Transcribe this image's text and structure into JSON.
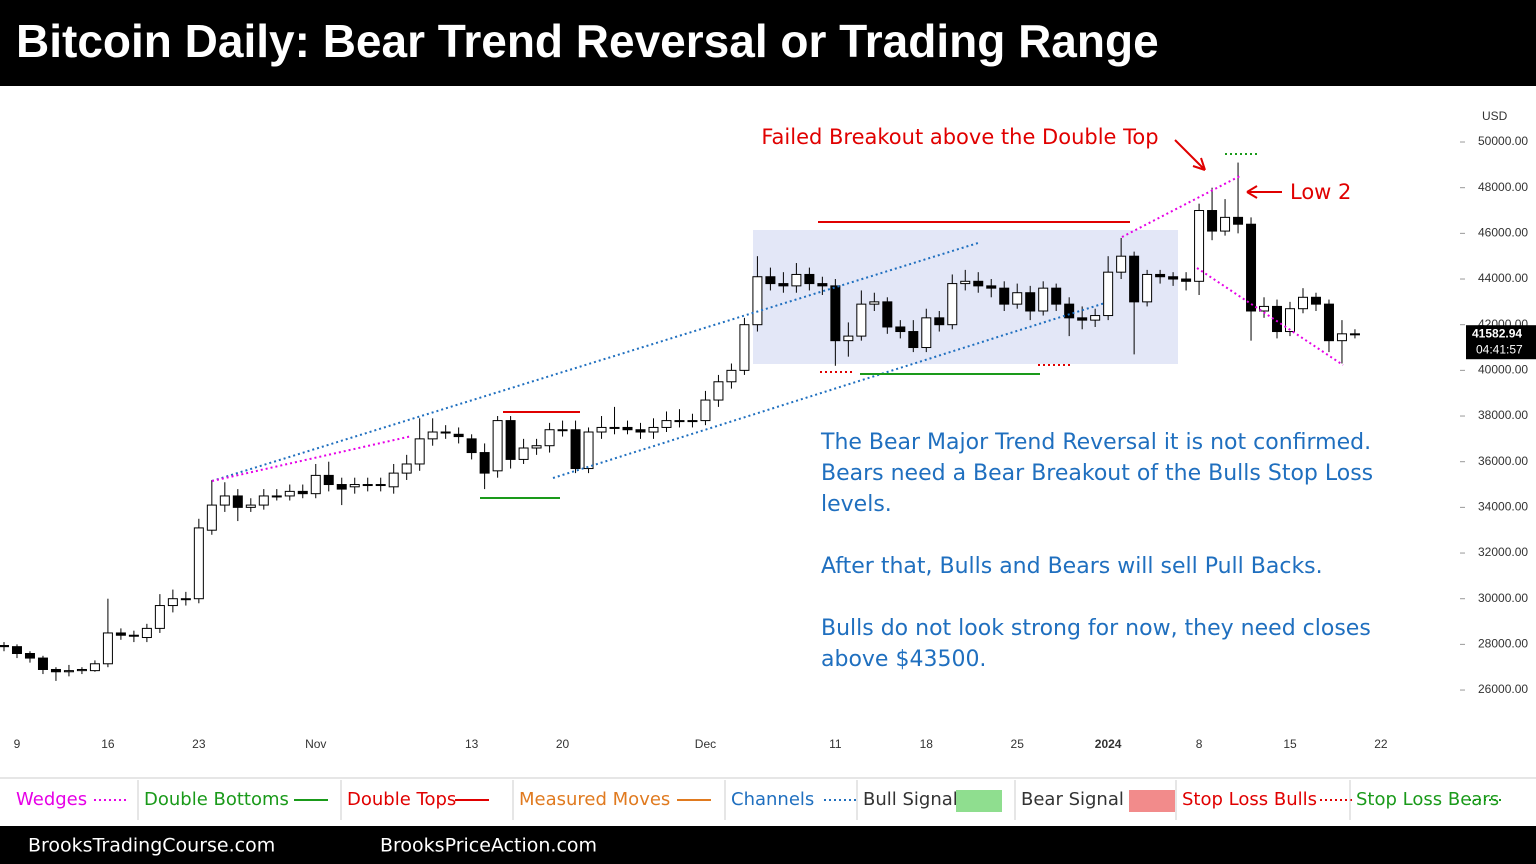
{
  "chart_data": {
    "type": "candlestick",
    "title": "Bitcoin Daily: Bear Trend Reversal or Trading Range",
    "currency": "USD",
    "categories": [
      null,
      "9",
      null,
      null,
      null,
      null,
      null,
      null,
      "16",
      null,
      null,
      null,
      null,
      null,
      null,
      "23",
      null,
      null,
      null,
      null,
      null,
      null,
      null,
      null,
      "Nov",
      null,
      null,
      null,
      null,
      null,
      null,
      null,
      null,
      null,
      null,
      null,
      "13",
      null,
      null,
      null,
      null,
      null,
      null,
      "20",
      null,
      null,
      null,
      null,
      null,
      null,
      null,
      null,
      null,
      null,
      "Dec",
      null,
      null,
      null,
      null,
      null,
      null,
      null,
      null,
      null,
      "11",
      null,
      null,
      null,
      null,
      null,
      null,
      "18",
      null,
      null,
      null,
      null,
      null,
      null,
      "25",
      null,
      null,
      null,
      null,
      null,
      null,
      "2024",
      null,
      null,
      null,
      null,
      null,
      null,
      "8",
      null,
      null,
      null,
      null,
      null,
      null,
      "15",
      null,
      null,
      null,
      null,
      null,
      null,
      "22",
      null,
      null
    ],
    "open": [
      27950,
      27900,
      27600,
      27400,
      26900,
      26800,
      26850,
      26850,
      27150,
      28500,
      28400,
      28300,
      28700,
      29700,
      30000,
      30000,
      33000,
      34100,
      34500,
      34000,
      34100,
      34500,
      34500,
      34700,
      34600,
      35400,
      35000,
      34900,
      35000,
      35000,
      34900,
      35500,
      35900,
      37000,
      37300,
      37200,
      37000,
      36400,
      35600,
      37800,
      36100,
      36600,
      36700,
      37400,
      37400,
      35700,
      37300,
      37500,
      37500,
      37400,
      37300,
      37500,
      37800,
      37800,
      37800,
      38700,
      39500,
      40000,
      42000,
      44100,
      43800,
      43700,
      44200,
      43800,
      43700,
      41300,
      41500,
      42900,
      43000,
      41900,
      41700,
      41000,
      42300,
      42000,
      43800,
      43900,
      43700,
      43600,
      42900,
      43400,
      42600,
      43600,
      42900,
      42300,
      42200,
      42400,
      44300,
      45000,
      43000,
      44200,
      44100,
      44000,
      43900,
      47000,
      46100,
      46700,
      46400,
      42600,
      42800,
      41700,
      42700,
      43200,
      42900,
      41300,
      41600,
      null,
      null,
      null,
      null
    ],
    "high": [
      28100,
      28000,
      27700,
      27500,
      27000,
      27100,
      27000,
      27300,
      30000,
      28700,
      28600,
      28900,
      30200,
      30400,
      30300,
      33500,
      35200,
      35100,
      34800,
      34400,
      34800,
      34800,
      35000,
      35000,
      35900,
      36000,
      35300,
      35300,
      35300,
      35300,
      35900,
      36300,
      37900,
      37900,
      37600,
      37500,
      37200,
      36800,
      38000,
      38000,
      37000,
      37000,
      37700,
      37800,
      37800,
      37500,
      38000,
      38400,
      37800,
      37700,
      37900,
      38200,
      38300,
      38100,
      39100,
      39800,
      40300,
      42300,
      45000,
      44500,
      44300,
      44700,
      44500,
      44100,
      44000,
      42100,
      43500,
      43400,
      43200,
      42200,
      42200,
      42700,
      42600,
      44200,
      44400,
      44300,
      44000,
      43900,
      43800,
      43700,
      43900,
      43800,
      43200,
      42800,
      42700,
      45000,
      45800,
      45200,
      44400,
      44400,
      44300,
      44300,
      47300,
      48000,
      47500,
      49100,
      46700,
      43200,
      43100,
      43000,
      43600,
      43400,
      43100,
      42200,
      41800,
      null,
      null,
      null,
      null
    ],
    "low": [
      27700,
      27400,
      27200,
      26700,
      26400,
      26600,
      26700,
      26800,
      27000,
      28200,
      28100,
      28100,
      28500,
      29400,
      29700,
      29800,
      32800,
      33800,
      33400,
      33800,
      33900,
      34300,
      34300,
      34400,
      34400,
      34700,
      34100,
      34600,
      34700,
      34700,
      34600,
      35200,
      35600,
      36700,
      37000,
      36800,
      36100,
      34800,
      35300,
      35700,
      35900,
      36300,
      36400,
      37100,
      35500,
      35500,
      37000,
      37200,
      37200,
      37000,
      37000,
      37300,
      37500,
      37500,
      37600,
      38400,
      39200,
      39800,
      41700,
      43500,
      43400,
      43400,
      43500,
      43300,
      40200,
      40600,
      41300,
      42600,
      41600,
      41400,
      40800,
      40800,
      41700,
      41800,
      43500,
      43400,
      43200,
      42600,
      42700,
      42200,
      42400,
      42600,
      41500,
      41800,
      41900,
      42200,
      44000,
      40700,
      42800,
      43800,
      43700,
      43500,
      43300,
      45700,
      45900,
      46000,
      41300,
      42300,
      41400,
      41500,
      42500,
      42600,
      40800,
      40300,
      41400,
      null,
      null,
      null,
      null
    ],
    "close": [
      27900,
      27600,
      27400,
      26900,
      26800,
      26850,
      26900,
      27150,
      28500,
      28400,
      28400,
      28700,
      29700,
      30000,
      30000,
      33100,
      34100,
      34500,
      34000,
      34100,
      34500,
      34500,
      34700,
      34600,
      35400,
      35000,
      34800,
      35000,
      35000,
      35000,
      35500,
      35900,
      37000,
      37300,
      37300,
      37100,
      36400,
      35500,
      37800,
      36100,
      36600,
      36700,
      37400,
      37400,
      35700,
      37300,
      37500,
      37500,
      37400,
      37300,
      37500,
      37800,
      37800,
      37800,
      38700,
      39500,
      40000,
      42000,
      44100,
      43800,
      43700,
      44200,
      43800,
      43700,
      41300,
      41500,
      42900,
      43000,
      41900,
      41700,
      41000,
      42300,
      42000,
      43800,
      43900,
      43700,
      43600,
      42900,
      43400,
      42600,
      43600,
      42900,
      42300,
      42200,
      42400,
      44300,
      45000,
      43000,
      44200,
      44100,
      44000,
      43900,
      47000,
      46100,
      46700,
      46400,
      42600,
      42800,
      41700,
      42700,
      43200,
      42900,
      41300,
      41600,
      41583,
      null,
      null,
      null,
      null
    ],
    "up_color": "#ffffff",
    "down_color": "#000000",
    "ylim": [
      24250,
      51840
    ],
    "yticks": [
      {
        "value": 26000,
        "label": "26000.00"
      },
      {
        "value": 28000,
        "label": "28000.00"
      },
      {
        "value": 30000,
        "label": "30000.00"
      },
      {
        "value": 32000,
        "label": "32000.00"
      },
      {
        "value": 34000,
        "label": "34000.00"
      },
      {
        "value": 36000,
        "label": "36000.00"
      },
      {
        "value": 38000,
        "label": "38000.00"
      },
      {
        "value": 40000,
        "label": "40000.00"
      },
      {
        "value": 42000,
        "label": "42000.00"
      },
      {
        "value": 44000,
        "label": "44000.00"
      },
      {
        "value": 46000,
        "label": "46000.00"
      },
      {
        "value": 48000,
        "label": "48000.00"
      },
      {
        "value": 50000,
        "label": "50000.00"
      }
    ],
    "last_price": 41582.94,
    "countdown": "04:41:57",
    "annotations": {
      "breakout": "Failed Breakout above the Double Top",
      "low2": "Low 2",
      "notes": [
        [
          "The Bear Major Trend Reversal it is not confirmed.",
          "Bears need a Bear Breakout of the Bulls Stop Loss",
          "levels."
        ],
        [
          "After that, Bulls and Bears will sell Pull Backs."
        ],
        [
          "Bulls do not look strong for now, they need closes",
          "above $43500."
        ]
      ]
    },
    "legend": [
      {
        "name": "Wedges",
        "color": "#e600e6",
        "style": "dotted"
      },
      {
        "name": "Double Bottoms",
        "color": "#1a9a1a",
        "style": "solid"
      },
      {
        "name": "Double Tops",
        "color": "#e00000",
        "style": "solid"
      },
      {
        "name": "Measured Moves",
        "color": "#e07a1f",
        "style": "solid"
      },
      {
        "name": "Channels",
        "color": "#1f6fbf",
        "style": "dotted"
      },
      {
        "name": "Bull Signal",
        "color": "#8fde8f",
        "style": "box"
      },
      {
        "name": "Bear Signal",
        "color": "#f28b8b",
        "style": "box"
      },
      {
        "name": "Stop Loss Bulls",
        "color": "#e00000",
        "style": "dotted"
      },
      {
        "name": "Stop Loss Bears",
        "color": "#1a9a1a",
        "style": "dotted"
      }
    ]
  },
  "footer": [
    "BrooksTradingCourse.com",
    "BrooksPriceAction.com"
  ]
}
